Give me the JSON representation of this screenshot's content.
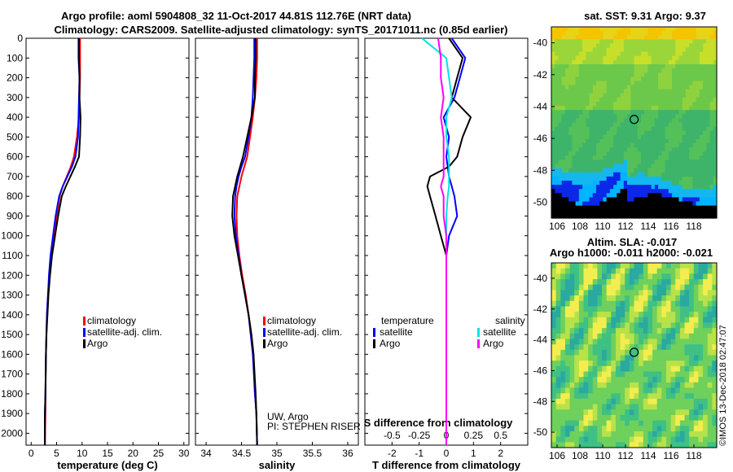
{
  "header": {
    "line1": "Argo profile: aoml 5904808_32 11-Oct-2017 44.81S 112.76E (NRT data)",
    "line2": "Climatology: CARS2009. Satellite-adjusted climatology: synTS_20171011.nc (0.85d earlier)"
  },
  "colors": {
    "climatology": "#ff0000",
    "satellite": "#0000ff",
    "argo": "#000000",
    "argo_salinity_diff": "#ff00ff",
    "satellite_salinity_diff": "#00e5e5"
  },
  "chart_data": [
    {
      "type": "line",
      "xlabel": "temperature (deg C)",
      "xlim": [
        -1,
        31
      ],
      "xticks": [
        "0",
        "5",
        "10",
        "15",
        "20",
        "25",
        "30"
      ],
      "ylim": [
        2060,
        0
      ],
      "yticks": [
        "0",
        "100",
        "200",
        "300",
        "400",
        "500",
        "600",
        "700",
        "800",
        "900",
        "1000",
        "1100",
        "1200",
        "1300",
        "1400",
        "1500",
        "1600",
        "1700",
        "1800",
        "1900",
        "2000"
      ],
      "legend": [
        "climatology",
        "satellite-adj. clim.",
        "Argo"
      ],
      "series": [
        {
          "name": "climatology",
          "color": "#ff0000",
          "x": [
            9.6,
            9.6,
            9.6,
            9.5,
            9.4,
            9.0,
            8.4,
            7.8,
            7.0,
            6.2,
            5.6,
            5.0,
            4.5,
            4.0,
            3.6,
            3.3,
            3.1,
            3.0,
            2.9,
            2.8,
            2.8,
            2.7
          ],
          "y": [
            0,
            100,
            200,
            300,
            400,
            500,
            600,
            650,
            700,
            750,
            800,
            900,
            1000,
            1100,
            1200,
            1300,
            1400,
            1500,
            1600,
            1800,
            1900,
            2060
          ]
        },
        {
          "name": "satellite-adj. clim.",
          "color": "#0000ff",
          "x": [
            9.3,
            9.3,
            9.5,
            9.4,
            9.3,
            9.2,
            8.7,
            8.0,
            7.1,
            6.2,
            5.5,
            4.8,
            4.3,
            3.8,
            3.5,
            3.3,
            3.1,
            3.0,
            2.9,
            2.8,
            2.7,
            2.7
          ],
          "y": [
            0,
            100,
            200,
            300,
            400,
            500,
            600,
            650,
            700,
            750,
            800,
            900,
            1000,
            1100,
            1200,
            1300,
            1400,
            1500,
            1600,
            1800,
            1900,
            2060
          ]
        },
        {
          "name": "Argo",
          "color": "#000000",
          "x": [
            9.4,
            9.4,
            9.5,
            9.5,
            9.7,
            9.6,
            9.4,
            8.6,
            7.7,
            6.8,
            6.0,
            5.3,
            4.7,
            4.1,
            3.7,
            3.4,
            3.2,
            3.0,
            2.9,
            2.8,
            2.7,
            2.7
          ],
          "y": [
            0,
            100,
            200,
            300,
            400,
            500,
            600,
            650,
            700,
            750,
            800,
            900,
            1000,
            1100,
            1200,
            1300,
            1400,
            1500,
            1600,
            1800,
            1900,
            2060
          ]
        }
      ]
    },
    {
      "type": "line",
      "xlabel": "salinity",
      "xlim": [
        33.85,
        36.15
      ],
      "xticks": [
        "34",
        "34.5",
        "35",
        "35.5",
        "36"
      ],
      "ylim": [
        2060,
        0
      ],
      "legend": [
        "climatology",
        "satellite-adj. clim.",
        "Argo"
      ],
      "annotations": [
        "UW, Argo",
        "PI: STEPHEN RISER"
      ],
      "series": [
        {
          "name": "climatology",
          "color": "#ff0000",
          "x": [
            34.72,
            34.72,
            34.71,
            34.69,
            34.66,
            34.62,
            34.58,
            34.54,
            34.5,
            34.47,
            34.44,
            34.43,
            34.44,
            34.47,
            34.51,
            34.56,
            34.6,
            34.64,
            34.67,
            34.69,
            34.71,
            34.72
          ],
          "y": [
            0,
            100,
            200,
            300,
            400,
            500,
            600,
            650,
            700,
            750,
            800,
            900,
            1000,
            1100,
            1200,
            1300,
            1400,
            1500,
            1600,
            1800,
            1900,
            2060
          ]
        },
        {
          "name": "satellite-adj. clim.",
          "color": "#0000ff",
          "x": [
            34.68,
            34.68,
            34.67,
            34.66,
            34.64,
            34.6,
            34.55,
            34.5,
            34.46,
            34.43,
            34.41,
            34.4,
            34.42,
            34.46,
            34.5,
            34.55,
            34.6,
            34.63,
            34.66,
            34.69,
            34.71,
            34.72
          ],
          "y": [
            0,
            100,
            200,
            300,
            400,
            500,
            600,
            650,
            700,
            750,
            800,
            900,
            1000,
            1100,
            1200,
            1300,
            1400,
            1500,
            1600,
            1800,
            1900,
            2060
          ]
        },
        {
          "name": "Argo",
          "color": "#000000",
          "x": [
            34.7,
            34.7,
            34.69,
            34.69,
            34.64,
            34.58,
            34.52,
            34.48,
            34.44,
            34.41,
            34.38,
            34.37,
            34.4,
            34.45,
            34.5,
            34.55,
            34.6,
            34.64,
            34.67,
            34.7,
            34.71,
            34.72
          ],
          "y": [
            0,
            100,
            200,
            300,
            400,
            500,
            600,
            650,
            700,
            750,
            800,
            900,
            1000,
            1100,
            1200,
            1300,
            1400,
            1500,
            1600,
            1800,
            1900,
            2060
          ]
        }
      ]
    },
    {
      "type": "line",
      "xlabel": "T difference from climatology",
      "x2label": "S difference from climatology",
      "xlim": [
        -3,
        3
      ],
      "xticks": [
        "-2",
        "-1",
        "0",
        "1",
        "2"
      ],
      "x2ticks": [
        "-0.5",
        "-0.25",
        "0",
        "0.25",
        "0.5"
      ],
      "ylim": [
        2060,
        0
      ],
      "legend_left_title": "temperature",
      "legend_right_title": "salinity",
      "legend_left": [
        "satellite",
        "Argo"
      ],
      "legend_right": [
        "satellite",
        "Argo"
      ],
      "series": [
        {
          "name": "satellite",
          "group": "temperature",
          "color": "#0000ff",
          "x": [
            0.2,
            0.7,
            0.5,
            0.3,
            -0.1,
            0.1,
            0.0,
            0.05,
            0.1,
            0.2,
            0.3,
            0.4,
            0.1,
            0.0,
            0.0,
            0.0,
            0.0,
            0.0,
            0.0,
            0.0,
            0.0,
            0.0
          ],
          "y": [
            0,
            100,
            200,
            300,
            400,
            500,
            600,
            650,
            700,
            750,
            800,
            900,
            1000,
            1100,
            1200,
            1300,
            1400,
            1500,
            1600,
            1800,
            1900,
            2060
          ]
        },
        {
          "name": "Argo",
          "group": "temperature",
          "color": "#000000",
          "x": [
            0.1,
            0.6,
            0.4,
            0.2,
            0.9,
            0.6,
            0.4,
            0.1,
            -0.6,
            -0.7,
            -0.6,
            -0.4,
            -0.2,
            0.0,
            0.0,
            0.0,
            0.0,
            0.0,
            0.0,
            0.0,
            0.0,
            0.0
          ],
          "y": [
            0,
            100,
            200,
            300,
            400,
            500,
            600,
            650,
            700,
            750,
            800,
            900,
            1000,
            1100,
            1200,
            1300,
            1400,
            1500,
            1600,
            1800,
            1900,
            2060
          ]
        },
        {
          "name": "satellite",
          "group": "salinity",
          "color": "#00e5e5",
          "x": [
            -0.9,
            0.0,
            0.1,
            0.2,
            0.0,
            0.0,
            0.1,
            0.1,
            0.1,
            0.1,
            0.05,
            0.0,
            0.0,
            0.0,
            0.0,
            0.0,
            0.0,
            0.0,
            0.0,
            0.0,
            0.0,
            0.0
          ],
          "y": [
            0,
            100,
            200,
            300,
            400,
            500,
            600,
            650,
            700,
            750,
            800,
            900,
            1000,
            1100,
            1200,
            1300,
            1400,
            1500,
            1600,
            1800,
            1900,
            2060
          ]
        },
        {
          "name": "Argo",
          "group": "salinity",
          "color": "#ff00ff",
          "x": [
            -0.3,
            -0.2,
            -0.2,
            -0.1,
            -0.2,
            -0.1,
            -0.1,
            -0.1,
            -0.1,
            -0.2,
            -0.1,
            -0.1,
            0.0,
            0.0,
            0.0,
            0.0,
            0.0,
            0.0,
            0.0,
            0.0,
            0.0,
            0.0
          ],
          "y": [
            0,
            100,
            200,
            300,
            400,
            500,
            600,
            650,
            700,
            750,
            800,
            900,
            1000,
            1100,
            1200,
            1300,
            1400,
            1500,
            1600,
            1800,
            1900,
            2060
          ]
        }
      ]
    },
    {
      "type": "heatmap",
      "title": "sat. SST: 9.31 Argo: 9.37",
      "xticks": [
        "106",
        "108",
        "110",
        "112",
        "114",
        "116",
        "118"
      ],
      "yticks": [
        "-40",
        "-42",
        "-44",
        "-46",
        "-48",
        "-50"
      ],
      "marker": {
        "lon": 112.76,
        "lat": -44.81
      }
    },
    {
      "type": "heatmap",
      "title_line1": "Altim. SLA: -0.017",
      "title_line2": "Argo h1000: -0.011 h2000: -0.021",
      "xticks": [
        "106",
        "108",
        "110",
        "112",
        "114",
        "116",
        "118"
      ],
      "yticks": [
        "-40",
        "-42",
        "-44",
        "-46",
        "-48",
        "-50"
      ],
      "marker": {
        "lon": 112.76,
        "lat": -44.81
      }
    }
  ],
  "footer": {
    "credit": "©IMOS 13-Dec-2018 02:47:07"
  }
}
